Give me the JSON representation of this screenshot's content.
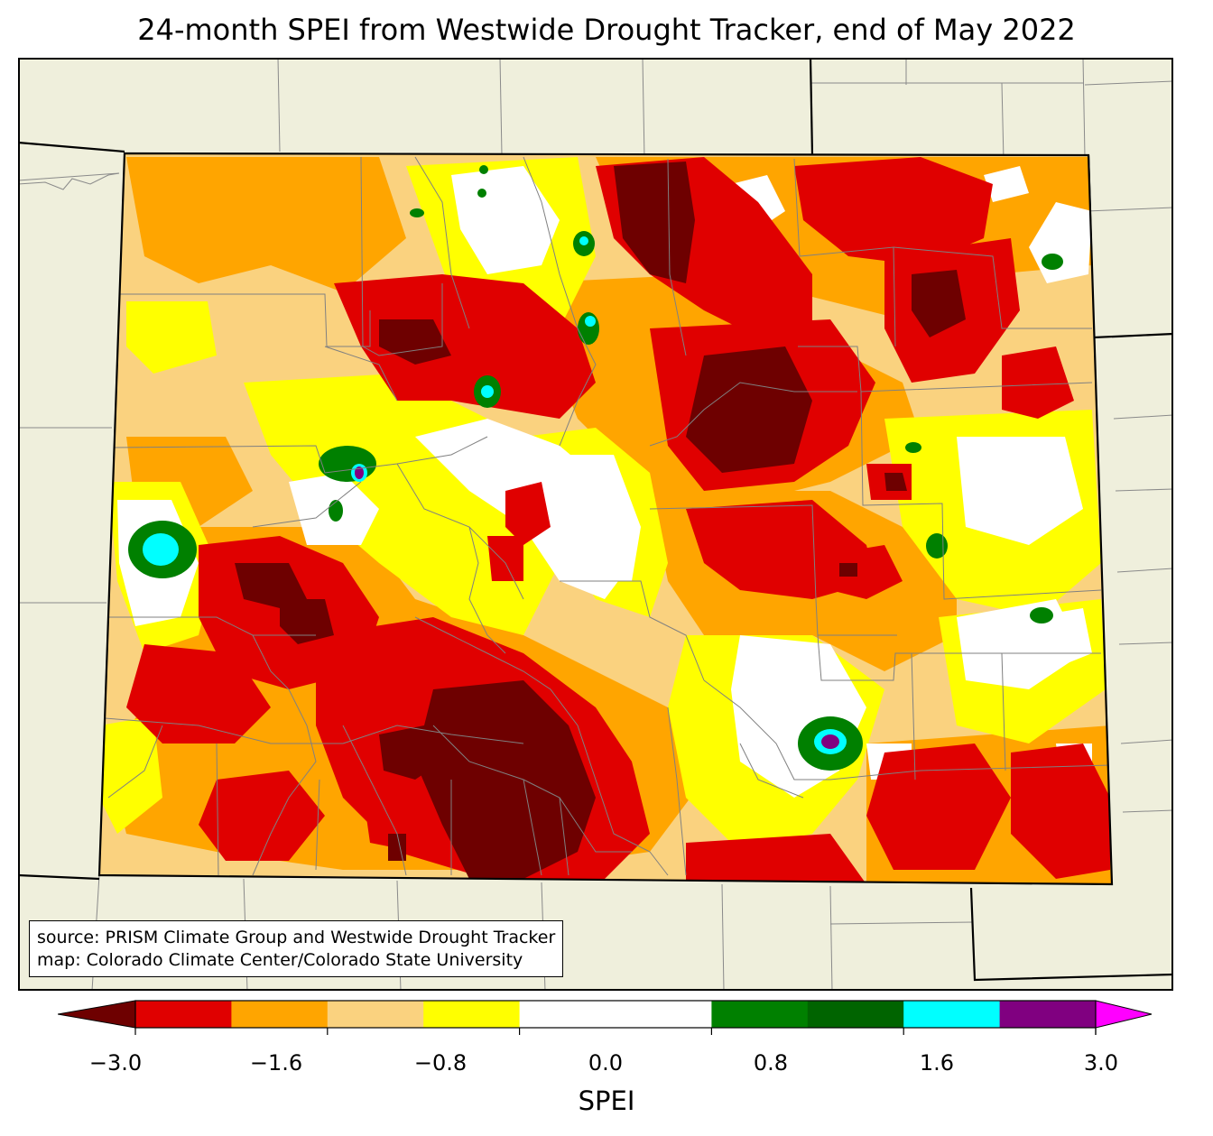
{
  "title": "24-month SPEI from Westwide Drought Tracker, end of May 2022",
  "source_lines": [
    "source: PRISM Climate Group and Westwide Drought Tracker",
    "map: Colorado Climate Center/Colorado State University"
  ],
  "colorbar": {
    "label": "SPEI",
    "tick_labels": [
      "−3.0",
      "−1.6",
      "−0.8",
      "0.0",
      "0.8",
      "1.6",
      "3.0"
    ],
    "tick_values": [
      -3.0,
      -1.6,
      -0.8,
      0.0,
      0.8,
      1.6,
      3.0
    ],
    "colors": [
      "#6e0000",
      "#e00000",
      "#ffa500",
      "#fad27f",
      "#ffff00",
      "#ffffff",
      "#ffffff",
      "#008000",
      "#006400",
      "#00ffff",
      "#800080",
      "#ff00ff"
    ],
    "extend": "both"
  },
  "map": {
    "region": "Colorado",
    "background_color": "#efefdc"
  }
}
